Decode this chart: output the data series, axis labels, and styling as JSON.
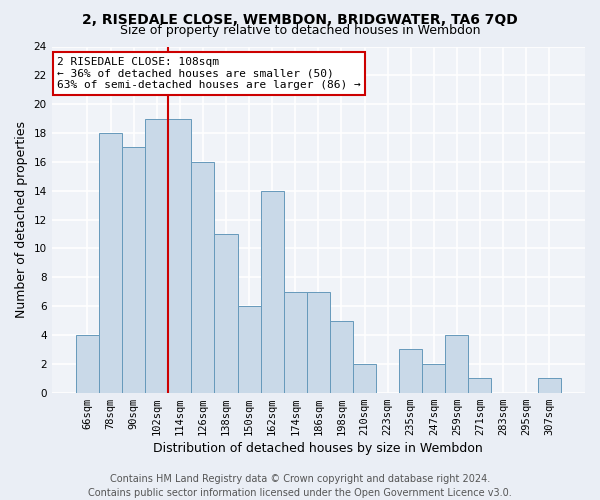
{
  "title1": "2, RISEDALE CLOSE, WEMBDON, BRIDGWATER, TA6 7QD",
  "title2": "Size of property relative to detached houses in Wembdon",
  "xlabel": "Distribution of detached houses by size in Wembdon",
  "ylabel": "Number of detached properties",
  "footer1": "Contains HM Land Registry data © Crown copyright and database right 2024.",
  "footer2": "Contains public sector information licensed under the Open Government Licence v3.0.",
  "categories": [
    "66sqm",
    "78sqm",
    "90sqm",
    "102sqm",
    "114sqm",
    "126sqm",
    "138sqm",
    "150sqm",
    "162sqm",
    "174sqm",
    "186sqm",
    "198sqm",
    "210sqm",
    "223sqm",
    "235sqm",
    "247sqm",
    "259sqm",
    "271sqm",
    "283sqm",
    "295sqm",
    "307sqm"
  ],
  "values": [
    4,
    18,
    17,
    19,
    19,
    16,
    11,
    6,
    14,
    7,
    7,
    5,
    2,
    0,
    3,
    2,
    4,
    1,
    0,
    0,
    1
  ],
  "bar_color": "#c9d9e8",
  "bar_edge_color": "#6699bb",
  "annotation_line1": "2 RISEDALE CLOSE: 108sqm",
  "annotation_line2": "← 36% of detached houses are smaller (50)",
  "annotation_line3": "63% of semi-detached houses are larger (86) →",
  "annotation_box_color": "#ffffff",
  "annotation_box_edge": "#cc0000",
  "vline_x": 3.5,
  "vline_color": "#cc0000",
  "ylim": [
    0,
    24
  ],
  "yticks": [
    0,
    2,
    4,
    6,
    8,
    10,
    12,
    14,
    16,
    18,
    20,
    22,
    24
  ],
  "bg_color": "#eaeef5",
  "plot_bg_color": "#f0f3f8",
  "grid_color": "#ffffff",
  "title1_fontsize": 10,
  "title2_fontsize": 9,
  "annotation_fontsize": 8,
  "xlabel_fontsize": 9,
  "ylabel_fontsize": 9,
  "footer_fontsize": 7,
  "tick_fontsize": 7.5
}
